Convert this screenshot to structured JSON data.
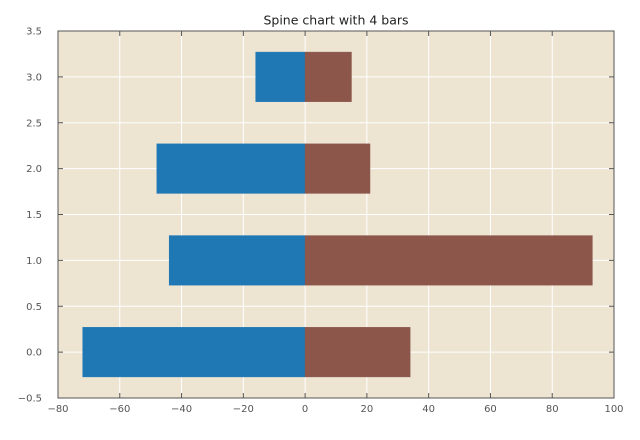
{
  "chart_data": {
    "type": "bar",
    "orientation": "horizontal",
    "stacking": "diverging",
    "title": "Spine chart with 4 bars",
    "xlabel": "",
    "ylabel": "",
    "xlim": [
      -80,
      100
    ],
    "ylim": [
      -0.5,
      3.5
    ],
    "xticks": [
      -80,
      -60,
      -40,
      -20,
      0,
      20,
      40,
      60,
      80,
      100
    ],
    "yticks": [
      -0.5,
      0.0,
      0.5,
      1.0,
      1.5,
      2.0,
      2.5,
      3.0,
      3.5
    ],
    "xtick_labels": [
      "−80",
      "−60",
      "−40",
      "−20",
      "0",
      "20",
      "40",
      "60",
      "80",
      "100"
    ],
    "ytick_labels": [
      "−0.5",
      "0.0",
      "0.5",
      "1.0",
      "1.5",
      "2.0",
      "2.5",
      "3.0",
      "3.5"
    ],
    "y": [
      0,
      1,
      2,
      3
    ],
    "grid": true,
    "legend": "none",
    "series": [
      {
        "values": [
          -72,
          -44,
          -48,
          -16
        ],
        "color": "#1f77b4"
      },
      {
        "values": [
          34,
          93,
          21,
          15
        ],
        "color": "#8c564b"
      }
    ],
    "colors": {
      "plot_background": "#ede5d2",
      "grid": "#ffffff",
      "axis": "#555555"
    }
  }
}
